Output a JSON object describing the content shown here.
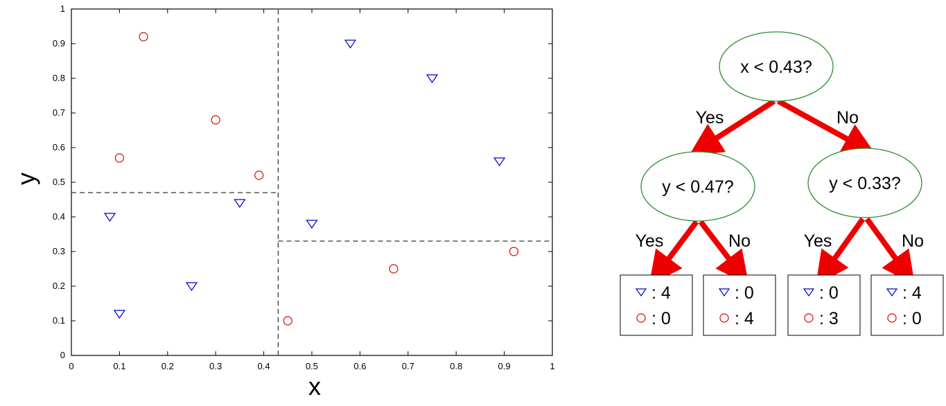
{
  "chart_data": {
    "type": "scatter",
    "xlabel": "x",
    "ylabel": "y",
    "xlim": [
      0,
      1
    ],
    "ylim": [
      0,
      1
    ],
    "xticks": [
      "0",
      "0.1",
      "0.2",
      "0.3",
      "0.4",
      "0.5",
      "0.6",
      "0.7",
      "0.8",
      "0.9",
      "1"
    ],
    "yticks": [
      "0",
      "0.1",
      "0.2",
      "0.3",
      "0.4",
      "0.5",
      "0.6",
      "0.7",
      "0.8",
      "0.9",
      "1"
    ],
    "grid": false,
    "series": [
      {
        "marker": "triangle-down",
        "color": "#0000cc",
        "points": [
          [
            0.08,
            0.4
          ],
          [
            0.1,
            0.12
          ],
          [
            0.25,
            0.2
          ],
          [
            0.35,
            0.44
          ],
          [
            0.5,
            0.38
          ],
          [
            0.58,
            0.9
          ],
          [
            0.75,
            0.8
          ],
          [
            0.89,
            0.56
          ]
        ]
      },
      {
        "marker": "circle",
        "color": "#e00000",
        "points": [
          [
            0.1,
            0.57
          ],
          [
            0.15,
            0.92
          ],
          [
            0.3,
            0.68
          ],
          [
            0.39,
            0.52
          ],
          [
            0.45,
            0.1
          ],
          [
            0.67,
            0.25
          ],
          [
            0.92,
            0.3
          ]
        ]
      }
    ],
    "splits": [
      {
        "axis": "x",
        "value": 0.43,
        "from": 0,
        "to": 1
      },
      {
        "axis": "y",
        "value": 0.47,
        "from": 0,
        "to": 0.43
      },
      {
        "axis": "y",
        "value": 0.33,
        "from": 0.43,
        "to": 1
      }
    ]
  },
  "tree": {
    "root": "x < 0.43?",
    "left_node": "y < 0.47?",
    "right_node": "y < 0.33?",
    "branch_yes": "Yes",
    "branch_no": "No",
    "node_border_color": "#2e8b2e",
    "arrow_color": "#ee0000",
    "leaves": [
      {
        "triangle_count": ": 4",
        "circle_count": ": 0"
      },
      {
        "triangle_count": ": 0",
        "circle_count": ": 4"
      },
      {
        "triangle_count": ": 0",
        "circle_count": ": 3"
      },
      {
        "triangle_count": ": 4",
        "circle_count": ": 0"
      }
    ]
  }
}
